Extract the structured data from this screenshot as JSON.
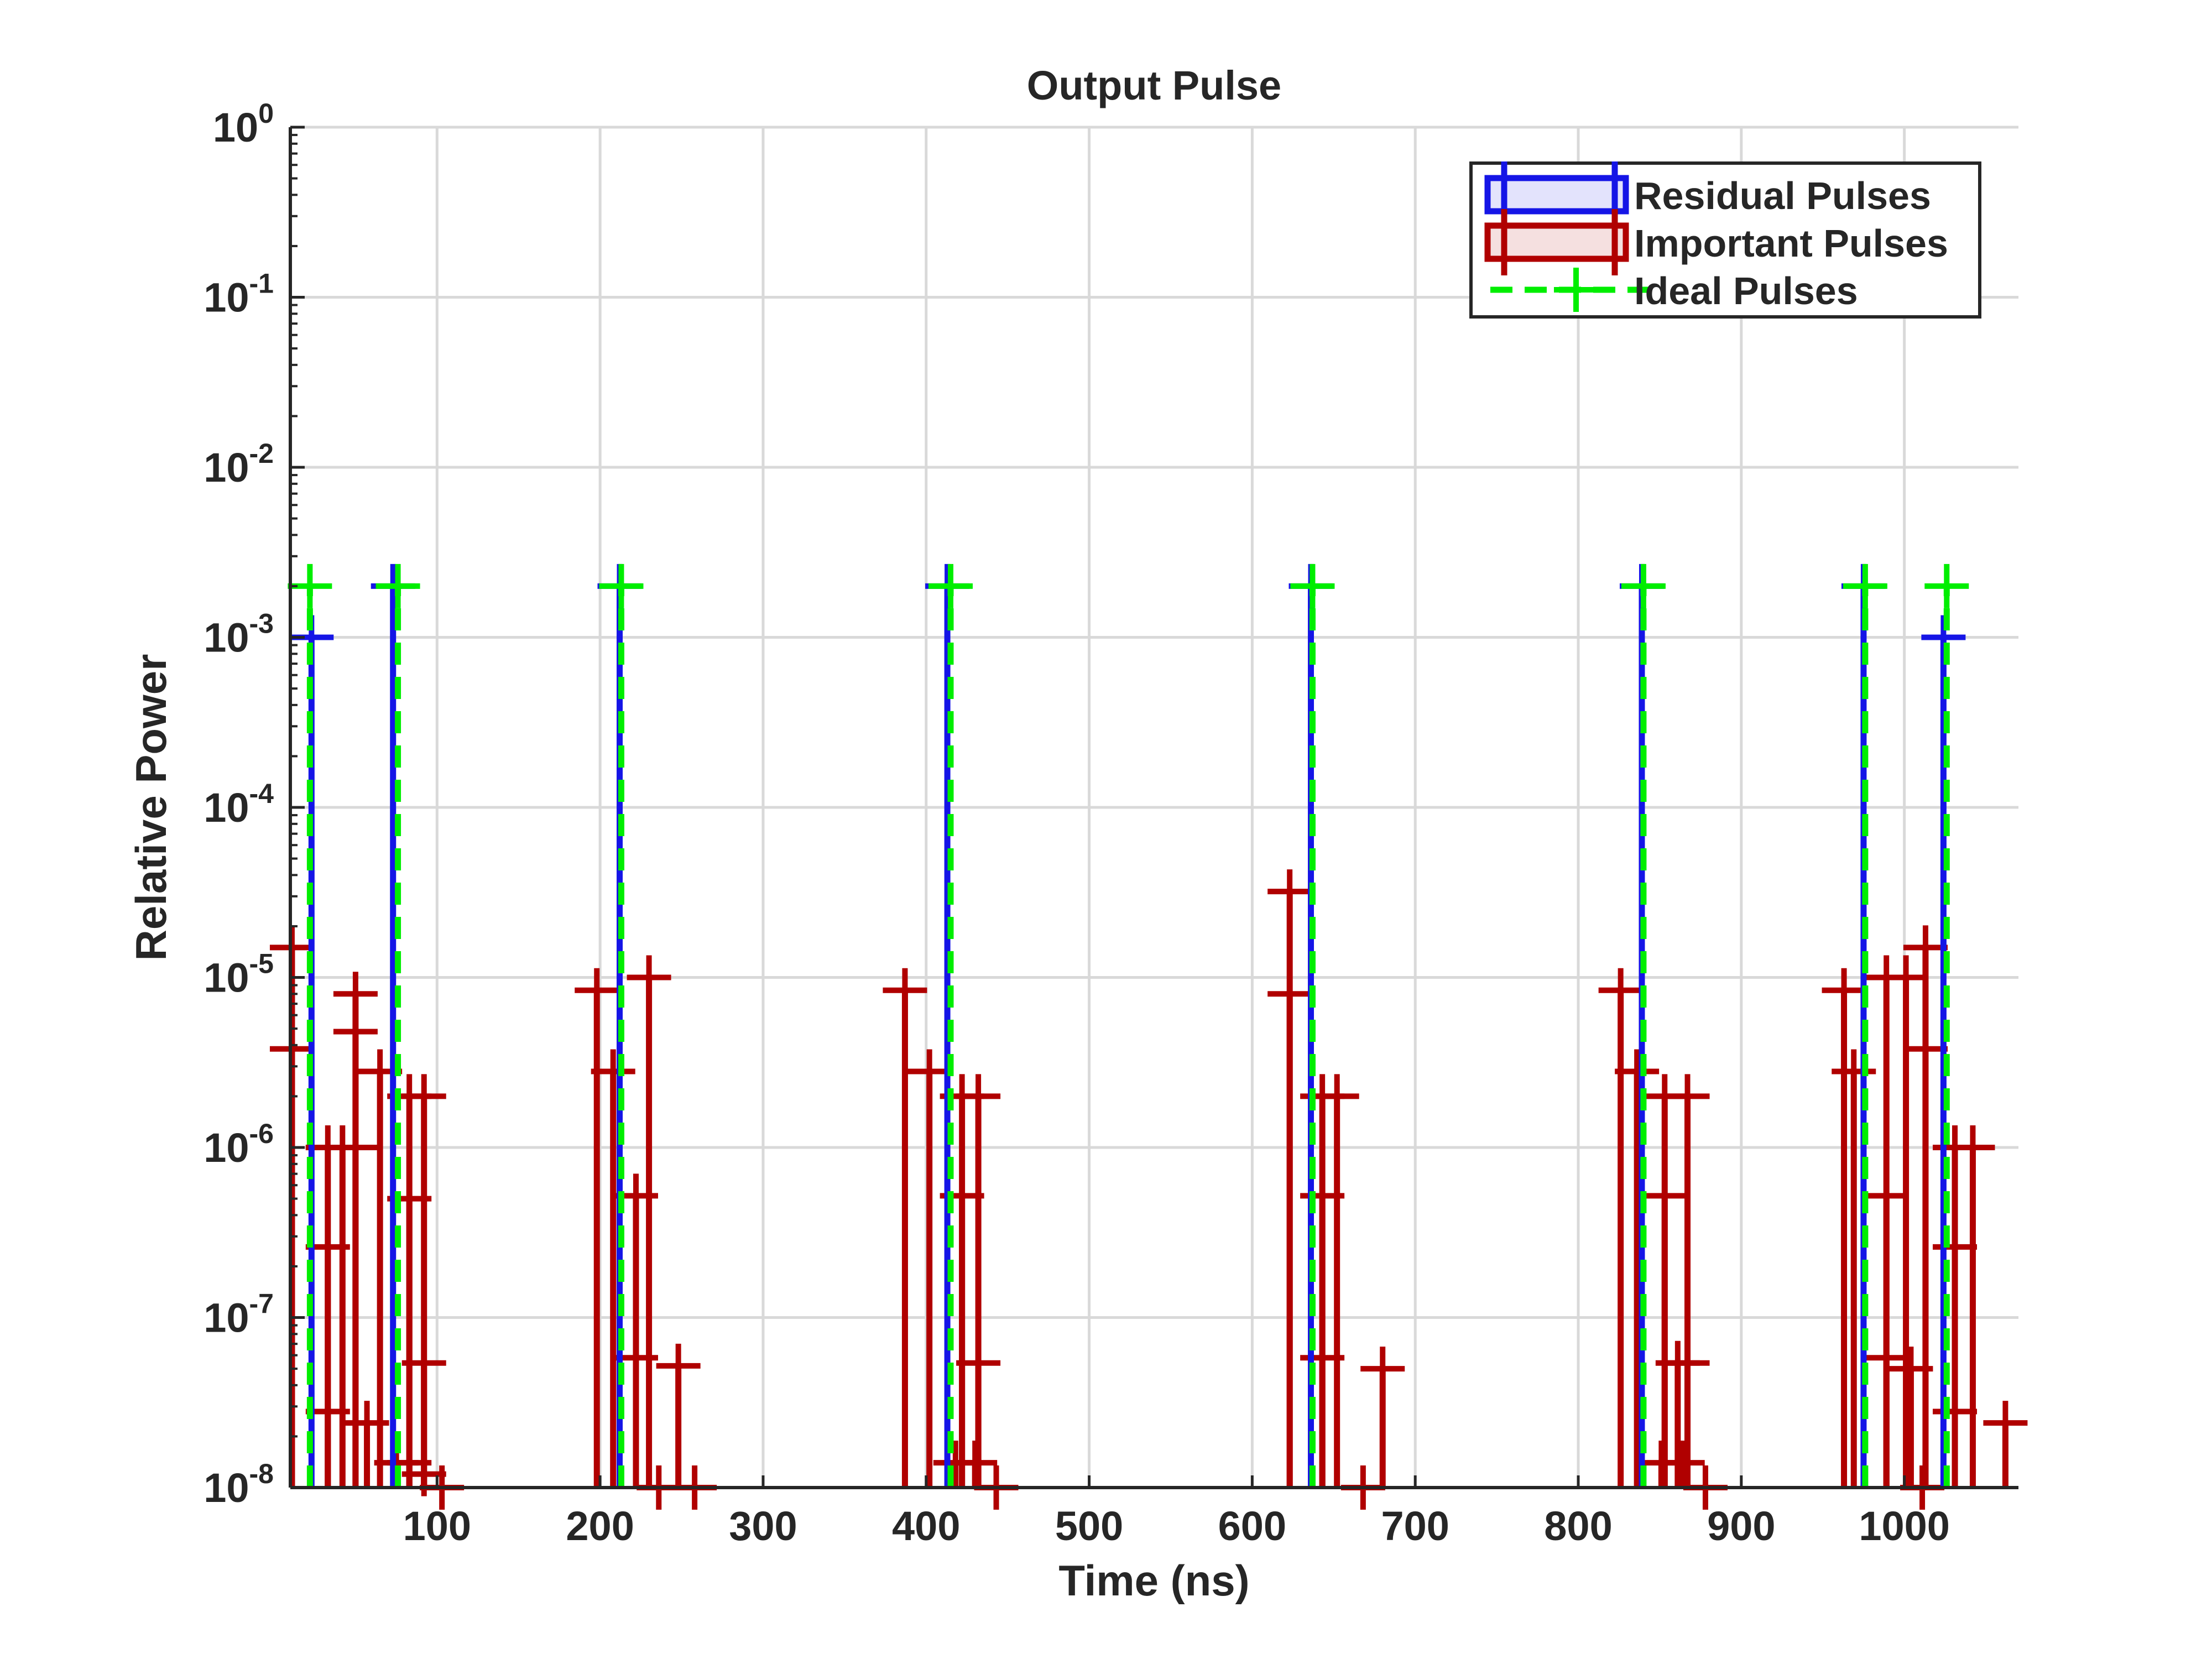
{
  "chart_data": {
    "type": "stem",
    "title": "Output Pulse",
    "xlabel": "Time (ns)",
    "ylabel": "Relative Power",
    "xlim": [
      10,
      1070
    ],
    "ylim": [
      1e-08,
      1
    ],
    "yscale": "log",
    "grid": true,
    "legend_position": "top-right",
    "x_ticks": [
      100,
      200,
      300,
      400,
      500,
      600,
      700,
      800,
      900,
      1000
    ],
    "x_tick_labels": [
      "100",
      "200",
      "300",
      "400",
      "500",
      "600",
      "700",
      "800",
      "900",
      "1000"
    ],
    "y_ticks": [
      1e-08,
      1e-07,
      1e-06,
      1e-05,
      0.0001,
      0.001,
      0.01,
      0.1,
      1
    ],
    "y_tick_labels": [
      {
        "base": "10",
        "exp": "-8"
      },
      {
        "base": "10",
        "exp": "-7"
      },
      {
        "base": "10",
        "exp": "-6"
      },
      {
        "base": "10",
        "exp": "-5"
      },
      {
        "base": "10",
        "exp": "-4"
      },
      {
        "base": "10",
        "exp": "-3"
      },
      {
        "base": "10",
        "exp": "-2"
      },
      {
        "base": "10",
        "exp": "-1"
      },
      {
        "base": "10",
        "exp": "0"
      }
    ],
    "series": [
      {
        "name": "Residual Pulses",
        "color": "#1515e6",
        "style": "solid",
        "points": [
          [
            23,
            0.001
          ],
          [
            73,
            0.002
          ],
          [
            212,
            0.002
          ],
          [
            413,
            0.002
          ],
          [
            636,
            0.002
          ],
          [
            839,
            0.002
          ],
          [
            975,
            0.002
          ],
          [
            1024,
            0.001
          ]
        ]
      },
      {
        "name": "Important Pulses",
        "color": "#b00000",
        "style": "solid",
        "points": [
          [
            11,
            1.5e-05
          ],
          [
            11,
            3.8e-06
          ],
          [
            33,
            1e-06
          ],
          [
            33,
            2.6e-07
          ],
          [
            33,
            2.8e-08
          ],
          [
            42,
            1e-06
          ],
          [
            50,
            8e-06
          ],
          [
            50,
            4.8e-06
          ],
          [
            50,
            1e-06
          ],
          [
            57,
            2.4e-08
          ],
          [
            65,
            2.8e-06
          ],
          [
            75,
            1.4e-08
          ],
          [
            83,
            2e-06
          ],
          [
            83,
            5e-07
          ],
          [
            83,
            1.4e-08
          ],
          [
            92,
            2e-06
          ],
          [
            92,
            5.4e-08
          ],
          [
            92,
            1.2e-08
          ],
          [
            103,
            1e-08
          ],
          [
            198,
            8.4e-06
          ],
          [
            208,
            2.8e-06
          ],
          [
            222,
            5.2e-07
          ],
          [
            222,
            5.8e-08
          ],
          [
            230,
            1e-05
          ],
          [
            236,
            1e-08
          ],
          [
            248,
            5.2e-08
          ],
          [
            258,
            1e-08
          ],
          [
            387,
            8.4e-06
          ],
          [
            402,
            2.8e-06
          ],
          [
            418,
            1.4e-08
          ],
          [
            422,
            2e-06
          ],
          [
            422,
            5.2e-07
          ],
          [
            430,
            1.4e-08
          ],
          [
            432,
            2e-06
          ],
          [
            432,
            5.4e-08
          ],
          [
            443,
            1e-08
          ],
          [
            623,
            3.2e-05
          ],
          [
            623,
            8e-06
          ],
          [
            643,
            2e-06
          ],
          [
            643,
            5.2e-07
          ],
          [
            643,
            5.8e-08
          ],
          [
            652,
            2e-06
          ],
          [
            668,
            1e-08
          ],
          [
            680,
            5e-08
          ],
          [
            826,
            8.4e-06
          ],
          [
            836,
            2.8e-06
          ],
          [
            851,
            1.4e-08
          ],
          [
            853,
            2e-06
          ],
          [
            853,
            5.2e-07
          ],
          [
            861,
            5.4e-08
          ],
          [
            864,
            1.4e-08
          ],
          [
            867,
            2e-06
          ],
          [
            867,
            5.4e-08
          ],
          [
            878,
            1e-08
          ],
          [
            963,
            8.4e-06
          ],
          [
            969,
            2.8e-06
          ],
          [
            989,
            1e-05
          ],
          [
            989,
            5.2e-07
          ],
          [
            989,
            5.8e-08
          ],
          [
            1001,
            1e-05
          ],
          [
            1004,
            5e-08
          ],
          [
            1011,
            1e-08
          ],
          [
            1013,
            1.5e-05
          ],
          [
            1013,
            3.8e-06
          ],
          [
            1031,
            1e-06
          ],
          [
            1031,
            2.6e-07
          ],
          [
            1031,
            2.8e-08
          ],
          [
            1042,
            1e-06
          ],
          [
            1062,
            2.4e-08
          ]
        ]
      },
      {
        "name": "Ideal Pulses",
        "color": "#00ee00",
        "style": "dashed",
        "points": [
          [
            22,
            0.002
          ],
          [
            76,
            0.002
          ],
          [
            213,
            0.002
          ],
          [
            415,
            0.002
          ],
          [
            637,
            0.002
          ],
          [
            840,
            0.002
          ],
          [
            976,
            0.002
          ],
          [
            1026,
            0.002
          ]
        ]
      }
    ]
  }
}
